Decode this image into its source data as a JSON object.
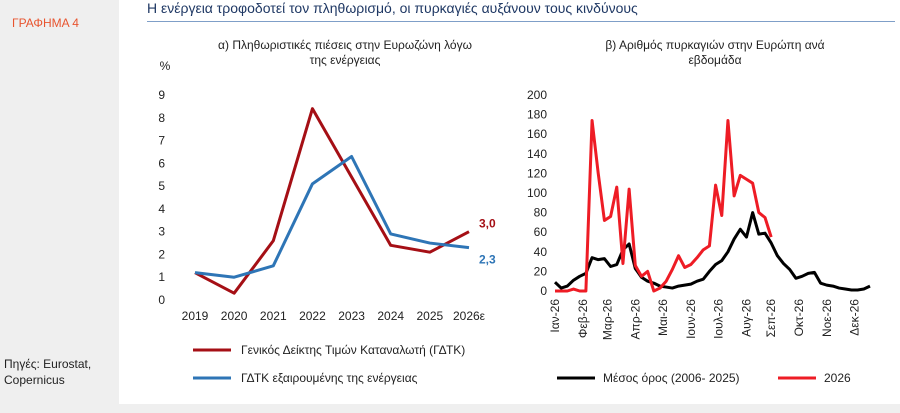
{
  "sidebar": {
    "figure_label": "ΓΡΑΦΗΜΑ 4",
    "source_line1": "Πηγές: Eurostat,",
    "source_line2": "Copernicus"
  },
  "header": {
    "title": "Η ενέργεια τροφοδοτεί τον πληθωρισμό, οι πυρκαγιές αυξάνουν τους κινδύνους"
  },
  "colors": {
    "dark_red": "#a50f15",
    "blue": "#2e75b6",
    "black": "#000000",
    "red": "#ee1c25"
  },
  "chart_data": [
    {
      "type": "line",
      "title_line1": "α) Πληθωριστικές πιέσεις στην Ευρωζώνη λόγω",
      "title_line2": "της ενέργειας",
      "ylabel": "%",
      "categories": [
        "2019",
        "2020",
        "2021",
        "2022",
        "2023",
        "2024",
        "2025",
        "2026ε"
      ],
      "ylim": [
        0,
        9
      ],
      "yticks": [
        0,
        1,
        2,
        3,
        4,
        5,
        6,
        7,
        8,
        9
      ],
      "series": [
        {
          "name": "Γενικός Δείκτης Τιμών Καταναλωτή (ΓΔΤΚ)",
          "color": "#a50f15",
          "values": [
            1.2,
            0.3,
            2.6,
            8.4,
            5.4,
            2.4,
            2.1,
            3.0
          ]
        },
        {
          "name": "ΓΔΤΚ εξαιρουμένης της ενέργειας",
          "color": "#2e75b6",
          "values": [
            1.2,
            1.0,
            1.5,
            5.1,
            6.3,
            2.9,
            2.5,
            2.3
          ]
        }
      ],
      "end_labels": [
        {
          "series": 0,
          "text": "3,0"
        },
        {
          "series": 1,
          "text": "2,3"
        }
      ],
      "grid": false,
      "legend": "bottom"
    },
    {
      "type": "line",
      "title_line1": "β) Αριθμός πυρκαγιών στην Ευρώπη ανά",
      "title_line2": "εβδομάδα",
      "ylim": [
        0,
        200
      ],
      "yticks": [
        0,
        20,
        40,
        60,
        80,
        100,
        120,
        140,
        160,
        180,
        200
      ],
      "x_weeks": 52,
      "month_ticks": [
        {
          "label": "Ιαν-26",
          "week": 1
        },
        {
          "label": "Φεβ-26",
          "week": 5.5
        },
        {
          "label": "Μαρ-26",
          "week": 9.5
        },
        {
          "label": "Απρ-26",
          "week": 14
        },
        {
          "label": "Μαι-26",
          "week": 18.5
        },
        {
          "label": "Ιουν-26",
          "week": 23
        },
        {
          "label": "Ιουλ-26",
          "week": 27.5
        },
        {
          "label": "Αυγ-26",
          "week": 32
        },
        {
          "label": "Σεπ-26",
          "week": 36
        },
        {
          "label": "Οκτ-26",
          "week": 40.5
        },
        {
          "label": "Νοε-26",
          "week": 45
        },
        {
          "label": "Δεκ-26",
          "week": 49.5
        }
      ],
      "series": [
        {
          "name": "Μέσος όρος (2006- 2025)",
          "color": "#000000",
          "values": [
            9,
            3,
            5,
            11,
            15,
            18,
            34,
            32,
            33,
            25,
            27,
            42,
            48,
            23,
            14,
            10,
            8,
            5,
            4,
            3,
            5,
            6,
            7,
            10,
            12,
            20,
            27,
            31,
            40,
            53,
            63,
            55,
            80,
            58,
            59,
            49,
            36,
            28,
            22,
            13,
            15,
            18,
            19,
            8,
            6,
            5,
            3,
            2,
            1,
            1,
            2,
            5
          ]
        },
        {
          "name": "2026",
          "color": "#ee1c25",
          "values": [
            0,
            0,
            0,
            2,
            0,
            0,
            174,
            120,
            72,
            76,
            106,
            28,
            104,
            26,
            15,
            20,
            0,
            3,
            10,
            22,
            36,
            24,
            27,
            34,
            42,
            46,
            108,
            77,
            174,
            97,
            118,
            114,
            110,
            80,
            75,
            55
          ]
        }
      ],
      "grid": false,
      "legend": "bottom"
    }
  ]
}
